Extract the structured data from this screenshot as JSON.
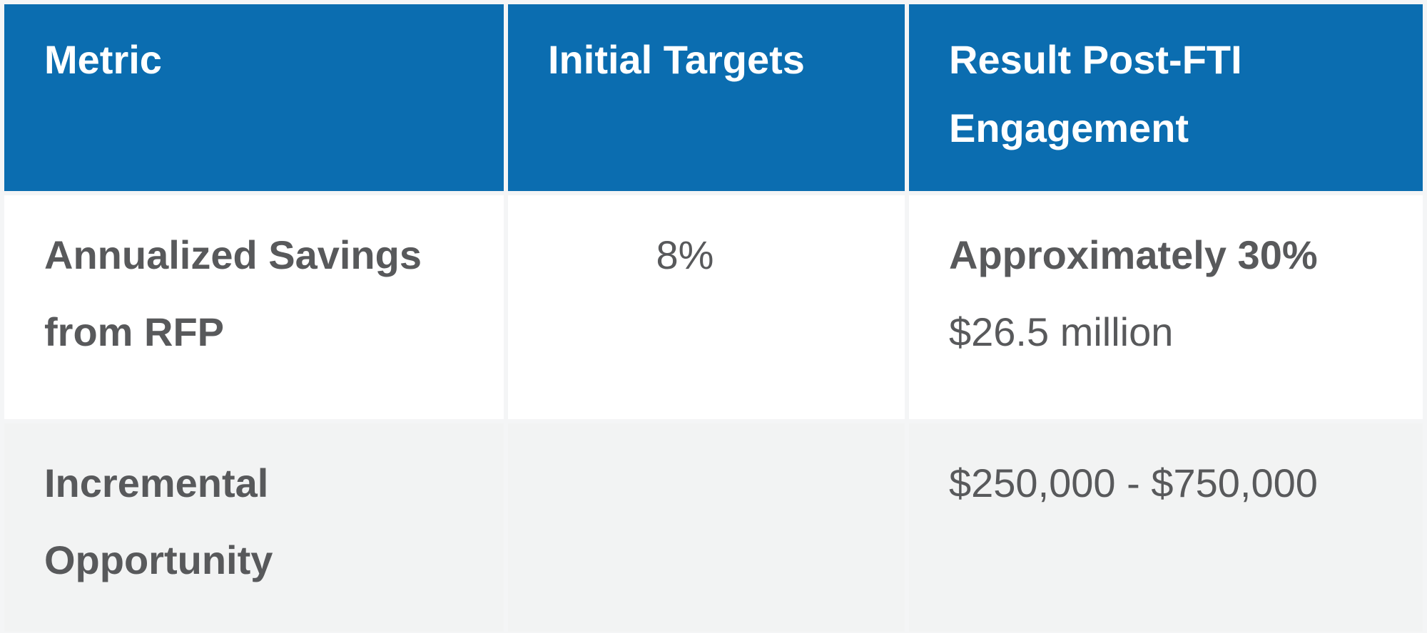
{
  "page": {
    "background": "#f4f5f6"
  },
  "table": {
    "description": "FTI engagement results comparison table",
    "colors": {
      "header_background": "#0b6db0",
      "header_text": "#ffffff",
      "body_text": "#58595b",
      "row_white_background": "#ffffff",
      "row_gray_background": "#f2f3f3"
    },
    "columns": [
      {
        "label": "Metric"
      },
      {
        "label": "Initial Targets"
      },
      {
        "label": "Result Post-FTI Engagement"
      }
    ],
    "rows": [
      {
        "metric": "Annualized Savings from RFP",
        "initial_target": "8%",
        "result_bold": "Approximately 30%",
        "result_regular": "$26.5 million"
      },
      {
        "metric": "Incremental Opportunity",
        "initial_target": "",
        "result_bold": "",
        "result_regular": "$250,000 - $750,000"
      }
    ]
  }
}
